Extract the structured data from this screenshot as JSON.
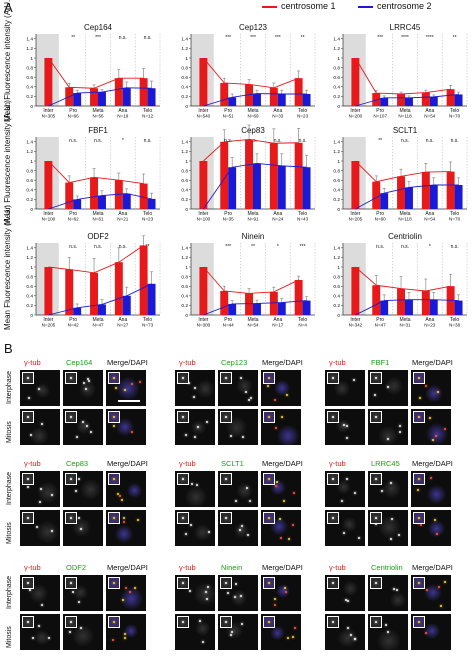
{
  "panel_a_label": "A",
  "panel_b_label": "B",
  "legend": [
    {
      "label": "centrosome 1",
      "color": "#e8191a"
    },
    {
      "label": "centrosome 2",
      "color": "#1a1ad6"
    }
  ],
  "y_axis_label": "Mean Fluorescence intensity (A.U.)",
  "chart_data": [
    {
      "type": "bar",
      "title": "Cep164",
      "categories": [
        "Inter",
        "Pro",
        "Meta",
        "Ana",
        "Telo"
      ],
      "n": [
        "N=305",
        "N=66",
        "N=56",
        "N=19",
        "N=12"
      ],
      "sig": [
        "**",
        "***",
        "n.s.",
        "n.s."
      ],
      "ylim": [
        0,
        1.5
      ],
      "ticks": [
        "0",
        "0.2",
        "0.4",
        "0.6",
        "0.8",
        "1",
        "1.2",
        "1.4"
      ],
      "series": [
        {
          "name": "centrosome 1",
          "values": [
            1.0,
            0.39,
            0.37,
            0.58,
            0.58
          ],
          "err": [
            0,
            0.08,
            0.07,
            0.18,
            0.2
          ]
        },
        {
          "name": "centrosome 2",
          "values": [
            0,
            0.27,
            0.29,
            0.38,
            0.37
          ],
          "err": [
            0,
            0.06,
            0.05,
            0.12,
            0.15
          ]
        }
      ]
    },
    {
      "type": "bar",
      "title": "Cep123",
      "categories": [
        "Inter",
        "Pro",
        "Meta",
        "Ana",
        "Telo"
      ],
      "n": [
        "N=540",
        "N=51",
        "N=69",
        "N=33",
        "N=23"
      ],
      "sig": [
        "***",
        "***",
        "***",
        "**"
      ],
      "ylim": [
        0,
        1.5
      ],
      "ticks": [
        "0",
        "0.2",
        "0.4",
        "0.6",
        "0.8",
        "1",
        "1.2",
        "1.4"
      ],
      "series": [
        {
          "name": "centrosome 1",
          "values": [
            1.0,
            0.48,
            0.45,
            0.38,
            0.58
          ],
          "err": [
            0,
            0.1,
            0.1,
            0.1,
            0.15
          ]
        },
        {
          "name": "centrosome 2",
          "values": [
            0,
            0.18,
            0.26,
            0.25,
            0.25
          ],
          "err": [
            0,
            0.07,
            0.07,
            0.08,
            0.08
          ]
        }
      ]
    },
    {
      "type": "bar",
      "title": "LRRC45",
      "categories": [
        "Inter",
        "Pro",
        "Meta",
        "Ana",
        "Telo"
      ],
      "n": [
        "N=200",
        "N=107",
        "N=118",
        "N=54",
        "N=70"
      ],
      "sig": [
        "***",
        "****",
        "****",
        "**"
      ],
      "ylim": [
        0,
        1.5
      ],
      "ticks": [
        "0",
        "0.2",
        "0.4",
        "0.6",
        "0.8",
        "1",
        "1.2",
        "1.4"
      ],
      "series": [
        {
          "name": "centrosome 1",
          "values": [
            1.0,
            0.27,
            0.25,
            0.28,
            0.35
          ],
          "err": [
            0,
            0.05,
            0.04,
            0.05,
            0.08
          ]
        },
        {
          "name": "centrosome 2",
          "values": [
            0,
            0.17,
            0.17,
            0.19,
            0.24
          ],
          "err": [
            0,
            0.04,
            0.04,
            0.04,
            0.05
          ]
        }
      ]
    },
    {
      "type": "bar",
      "title": "FBF1",
      "categories": [
        "Inter",
        "Pro",
        "Meta",
        "Ana",
        "Telo"
      ],
      "n": [
        "N=100",
        "N=62",
        "N=61",
        "N=21",
        "N=23"
      ],
      "sig": [
        "n.s.",
        "n.s.",
        "*",
        "n.s."
      ],
      "ylim": [
        0,
        1.5
      ],
      "ticks": [
        "0",
        "0.2",
        "0.4",
        "0.6",
        "0.8",
        "1",
        "1.2",
        "1.4"
      ],
      "series": [
        {
          "name": "centrosome 1",
          "values": [
            1.0,
            0.55,
            0.66,
            0.6,
            0.53
          ],
          "err": [
            0,
            0.14,
            0.18,
            0.15,
            0.2
          ]
        },
        {
          "name": "centrosome 2",
          "values": [
            0,
            0.2,
            0.28,
            0.32,
            0.21
          ],
          "err": [
            0,
            0.07,
            0.1,
            0.1,
            0.12
          ]
        }
      ]
    },
    {
      "type": "bar",
      "title": "Cep83",
      "categories": [
        "Inter",
        "Pro",
        "Meta",
        "Ana",
        "Telo"
      ],
      "n": [
        "N=100",
        "N=35",
        "N=91",
        "N=24",
        "N=43"
      ],
      "sig": [
        "n.s.",
        "n.s.",
        "n.s.",
        "n.s."
      ],
      "ylim": [
        0,
        1.5
      ],
      "ticks": [
        "0",
        "0.2",
        "0.4",
        "0.6",
        "0.8",
        "1",
        "1.2",
        "1.4"
      ],
      "series": [
        {
          "name": "centrosome 1",
          "values": [
            1.0,
            1.4,
            1.45,
            1.37,
            1.38
          ],
          "err": [
            0,
            0.25,
            0.3,
            0.3,
            0.3
          ]
        },
        {
          "name": "centrosome 2",
          "values": [
            0,
            0.87,
            0.95,
            0.9,
            0.87
          ],
          "err": [
            0,
            0.2,
            0.2,
            0.25,
            0.25
          ]
        }
      ]
    },
    {
      "type": "bar",
      "title": "SCLT1",
      "categories": [
        "Inter",
        "Pro",
        "Meta",
        "Ana",
        "Telo"
      ],
      "n": [
        "N=205",
        "N=60",
        "N=118",
        "N=54",
        "N=70"
      ],
      "sig": [
        "**",
        "n.s.",
        "n.s.",
        "n.s."
      ],
      "ylim": [
        0,
        1.5
      ],
      "ticks": [
        "0",
        "0.2",
        "0.4",
        "0.6",
        "0.8",
        "1",
        "1.2",
        "1.4"
      ],
      "series": [
        {
          "name": "centrosome 1",
          "values": [
            1.0,
            0.57,
            0.68,
            0.77,
            0.78
          ],
          "err": [
            0,
            0.12,
            0.15,
            0.18,
            0.2
          ]
        },
        {
          "name": "centrosome 2",
          "values": [
            0,
            0.33,
            0.45,
            0.5,
            0.5
          ],
          "err": [
            0,
            0.1,
            0.12,
            0.15,
            0.15
          ]
        }
      ]
    },
    {
      "type": "bar",
      "title": "ODF2",
      "categories": [
        "Inter",
        "Pro",
        "Meta",
        "Ana",
        "Telo"
      ],
      "n": [
        "N=205",
        "N=42",
        "N=47",
        "N=27",
        "N=73"
      ],
      "sig": [
        "n.s.",
        "n.s.",
        "n.s.",
        "**"
      ],
      "ylim": [
        0,
        1.5
      ],
      "ticks": [
        "0",
        "0.2",
        "0.4",
        "0.6",
        "0.8",
        "1",
        "1.2",
        "1.4"
      ],
      "series": [
        {
          "name": "centrosome 1",
          "values": [
            1.0,
            0.95,
            0.88,
            1.1,
            1.45
          ],
          "err": [
            0,
            0.25,
            0.3,
            0.3,
            0.2
          ]
        },
        {
          "name": "centrosome 2",
          "values": [
            0,
            0.15,
            0.22,
            0.4,
            0.65
          ],
          "err": [
            0,
            0.08,
            0.1,
            0.18,
            0.25
          ]
        }
      ]
    },
    {
      "type": "bar",
      "title": "Ninein",
      "categories": [
        "Inter",
        "Pro",
        "Meta",
        "Ana",
        "Telo"
      ],
      "n": [
        "N=300",
        "N=44",
        "N=54",
        "N=17",
        "N=4"
      ],
      "sig": [
        "***",
        "**",
        "*",
        "***"
      ],
      "ylim": [
        0,
        1.5
      ],
      "ticks": [
        "0",
        "0.2",
        "0.4",
        "0.6",
        "0.8",
        "1",
        "1.2",
        "1.4"
      ],
      "series": [
        {
          "name": "centrosome 1",
          "values": [
            1.0,
            0.5,
            0.45,
            0.48,
            0.73
          ],
          "err": [
            0,
            0.1,
            0.1,
            0.1,
            0.08
          ]
        },
        {
          "name": "centrosome 2",
          "values": [
            0,
            0.23,
            0.24,
            0.26,
            0.3
          ],
          "err": [
            0,
            0.07,
            0.07,
            0.08,
            0.08
          ]
        }
      ]
    },
    {
      "type": "bar",
      "title": "Centriolin",
      "categories": [
        "Inter",
        "Pro",
        "Meta",
        "Ana",
        "Telo"
      ],
      "n": [
        "N=342",
        "N=47",
        "N=31",
        "N=23",
        "N=38"
      ],
      "sig": [
        "n.s.",
        "n.s.",
        "*",
        "n.s."
      ],
      "ylim": [
        0,
        1.5
      ],
      "ticks": [
        "0",
        "0.2",
        "0.4",
        "0.6",
        "0.8",
        "1",
        "1.2",
        "1.4"
      ],
      "series": [
        {
          "name": "centrosome 1",
          "values": [
            1.0,
            0.62,
            0.55,
            0.5,
            0.6
          ],
          "err": [
            0,
            0.2,
            0.25,
            0.25,
            0.25
          ]
        },
        {
          "name": "centrosome 2",
          "values": [
            0,
            0.3,
            0.32,
            0.32,
            0.3
          ],
          "err": [
            0,
            0.12,
            0.15,
            0.15,
            0.12
          ]
        }
      ]
    }
  ],
  "panel_b": {
    "gamma_tub": "γ-tub",
    "merge": "Merge/DAPI",
    "rows": [
      "Interphase",
      "Mitosis"
    ],
    "groups": [
      [
        "Cep164",
        "Cep123",
        "FBF1"
      ],
      [
        "Cep83",
        "SCLT1",
        "LRRC45"
      ],
      [
        "ODF2",
        "Ninein",
        "Centriolin"
      ]
    ]
  }
}
